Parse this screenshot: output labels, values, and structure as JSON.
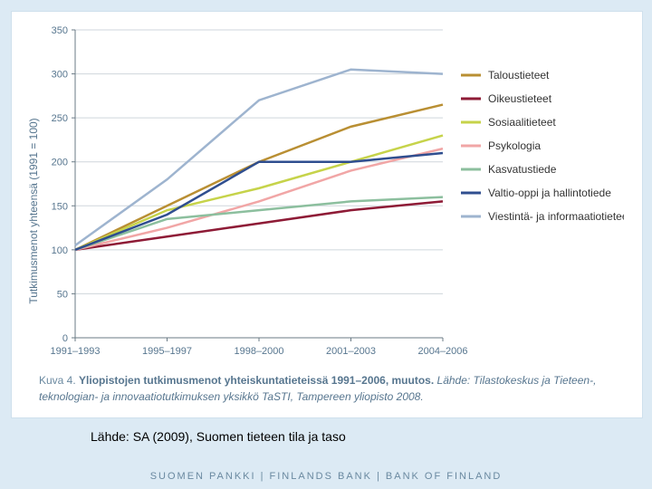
{
  "slide": {
    "background_color": "#dceaf4",
    "inner_background": "#ffffff"
  },
  "chart": {
    "type": "line",
    "y_axis_label": "Tutkimusmenot yhteensä (1991 = 100)",
    "ylim": [
      0,
      350
    ],
    "ytick_step": 50,
    "x_categories": [
      "1991–1993",
      "1995–1997",
      "1998–2000",
      "2001–2003",
      "2004–2006"
    ],
    "grid_color": "#cfd6dc",
    "axis_color": "#6b7b86",
    "tick_fontsize": 11,
    "label_fontsize": 12,
    "plot_bg": "#ffffff",
    "series": [
      {
        "name": "Taloustieteet",
        "color": "#b98f33",
        "values": [
          100,
          150,
          200,
          240,
          265
        ]
      },
      {
        "name": "Oikeustieteet",
        "color": "#8e1b36",
        "values": [
          100,
          115,
          130,
          145,
          155
        ]
      },
      {
        "name": "Sosiaalitieteet",
        "color": "#c6d34a",
        "values": [
          100,
          145,
          170,
          200,
          230
        ]
      },
      {
        "name": "Psykologia",
        "color": "#f1a6a6",
        "values": [
          100,
          125,
          155,
          190,
          215
        ]
      },
      {
        "name": "Kasvatustiede",
        "color": "#8cbf9e",
        "values": [
          100,
          135,
          145,
          155,
          160
        ]
      },
      {
        "name": "Valtio-oppi ja hallintotiede",
        "color": "#2f4e8f",
        "values": [
          100,
          140,
          200,
          200,
          210
        ]
      },
      {
        "name": "Viestintä- ja informaatiotieteet",
        "color": "#9eb4cf",
        "values": [
          105,
          180,
          270,
          305,
          300
        ]
      }
    ],
    "legend_fontsize": 12,
    "line_width": 2.5
  },
  "caption": {
    "lead": "Kuva 4.",
    "bold": "Yliopistojen tutkimusmenot yhteiskuntatieteissä 1991–2006, muutos.",
    "tail": "Lähde: Tilastokeskus ja Tieteen-, teknologian- ja innovaatiotutkimuksen yksikkö TaSTI, Tampereen yliopisto 2008."
  },
  "source_line": "Lähde: SA (2009), Suomen tieteen tila ja taso",
  "footer": "SUOMEN PANKKI | FINLANDS BANK | BANK OF FINLAND",
  "colors": {
    "text_muted": "#57768f",
    "footer": "#6a89a0"
  }
}
